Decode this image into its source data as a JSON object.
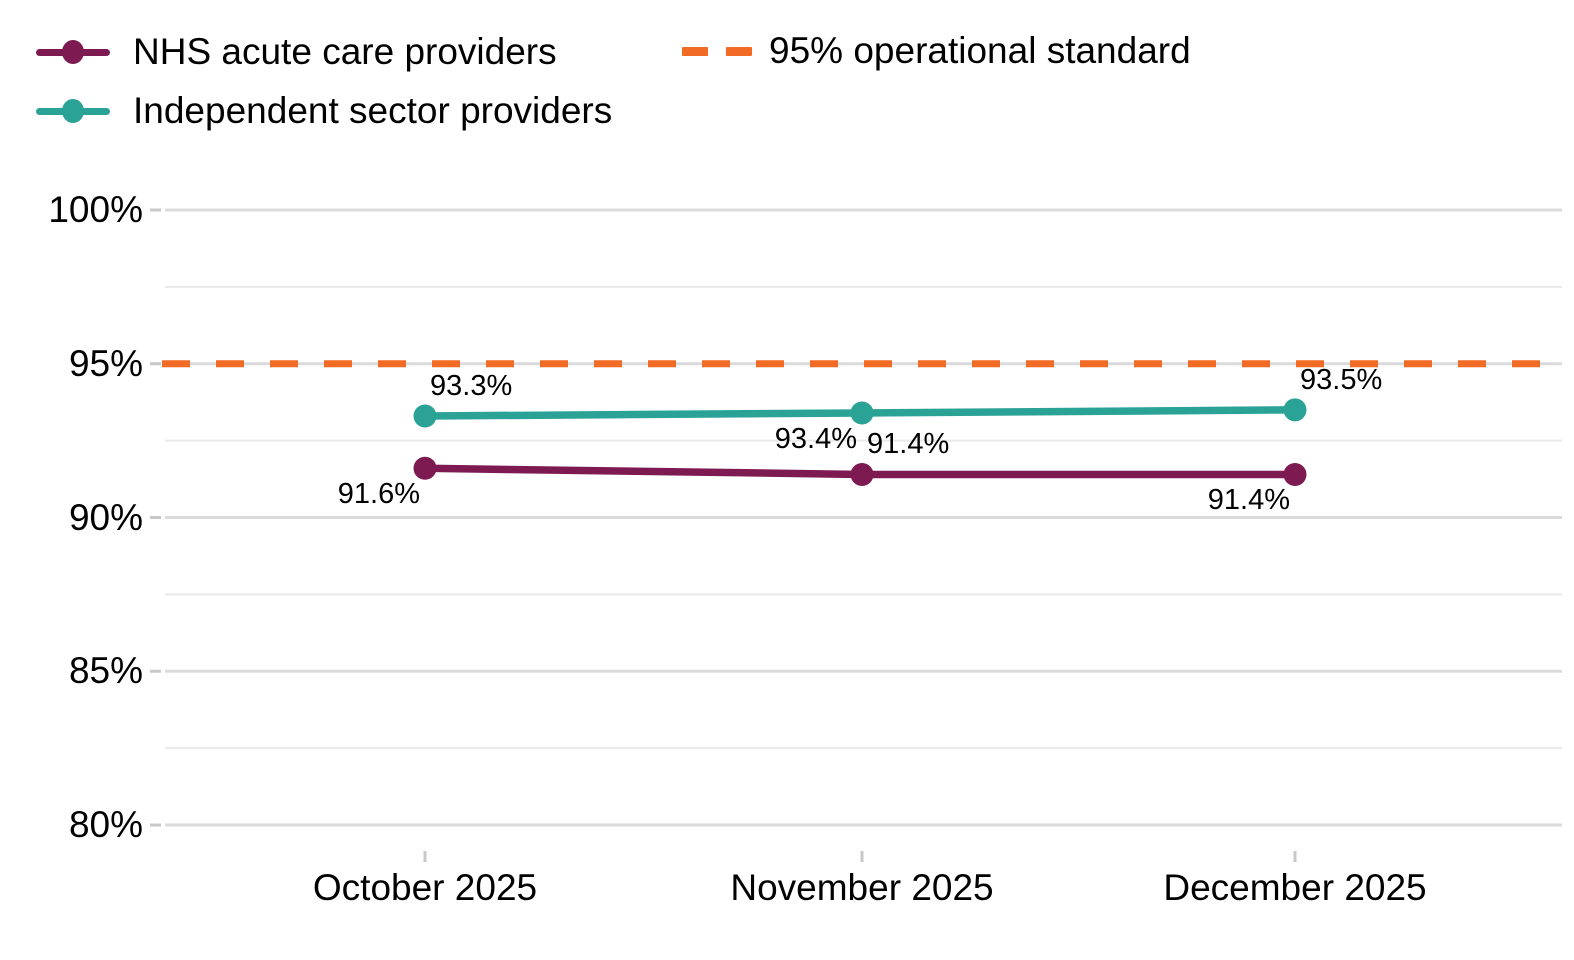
{
  "legend": {
    "items": [
      {
        "label": "NHS acute care providers",
        "swatch": "line-dot",
        "color": "#7E1A52"
      },
      {
        "label": "95% operational standard",
        "swatch": "dashed",
        "color": "#F26B24"
      },
      {
        "label": "Independent sector providers",
        "swatch": "line-dot",
        "color": "#2AA296"
      }
    ]
  },
  "chart_data": {
    "type": "line",
    "x": [
      "October 2025",
      "November 2025",
      "December 2025"
    ],
    "series": [
      {
        "name": "NHS acute care providers",
        "color": "#7E1A52",
        "values": [
          91.6,
          91.4,
          91.4
        ],
        "labels": [
          "91.6%",
          "91.4%",
          "91.4%"
        ],
        "label_anchors": [
          "below-left",
          "above-right",
          "below-left"
        ]
      },
      {
        "name": "Independent sector providers",
        "color": "#2AA296",
        "values": [
          93.3,
          93.4,
          93.5
        ],
        "labels": [
          "93.3%",
          "93.4%",
          "93.5%"
        ],
        "label_anchors": [
          "above-right",
          "below-left",
          "above-right"
        ]
      }
    ],
    "reference_line": {
      "name": "95% operational standard",
      "value": 95,
      "color": "#F26B24",
      "style": "dashed"
    },
    "yticks": [
      100,
      95,
      90,
      85,
      80
    ],
    "ytick_labels": [
      "100%",
      "95%",
      "90%",
      "85%",
      "80%"
    ],
    "minor_gridlines": [
      97.5,
      92.5,
      87.5,
      82.5
    ],
    "ylim": [
      78.8,
      101.5
    ],
    "grid": "horizontal",
    "legend_position": "top-left"
  }
}
